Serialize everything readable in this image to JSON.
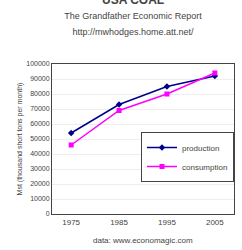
{
  "chart_data": {
    "type": "line",
    "title": "USA COAL",
    "subtitle": [
      "The Grandfather Economic Report",
      "http://mwhodges.home.att.net/"
    ],
    "annotations": [
      "data: www.economagic.com"
    ],
    "ylabel": "Mst (thousand short tons per month)",
    "x": [
      1975,
      1985,
      1995,
      2005
    ],
    "series": [
      {
        "name": "production",
        "color": "#00008B",
        "marker": "diamond",
        "values": [
          54000,
          73000,
          85000,
          92000
        ]
      },
      {
        "name": "consumption",
        "color": "#FF00FF",
        "marker": "square",
        "values": [
          46000,
          69000,
          80000,
          94000
        ]
      }
    ],
    "xlim": [
      1971,
      2009
    ],
    "xticks": [
      1975,
      1985,
      1995,
      2005
    ],
    "ylim": [
      0,
      100000
    ],
    "yticks": [
      0,
      10000,
      20000,
      30000,
      40000,
      50000,
      60000,
      70000,
      80000,
      90000,
      100000
    ],
    "grid": "y",
    "legend": "right"
  }
}
